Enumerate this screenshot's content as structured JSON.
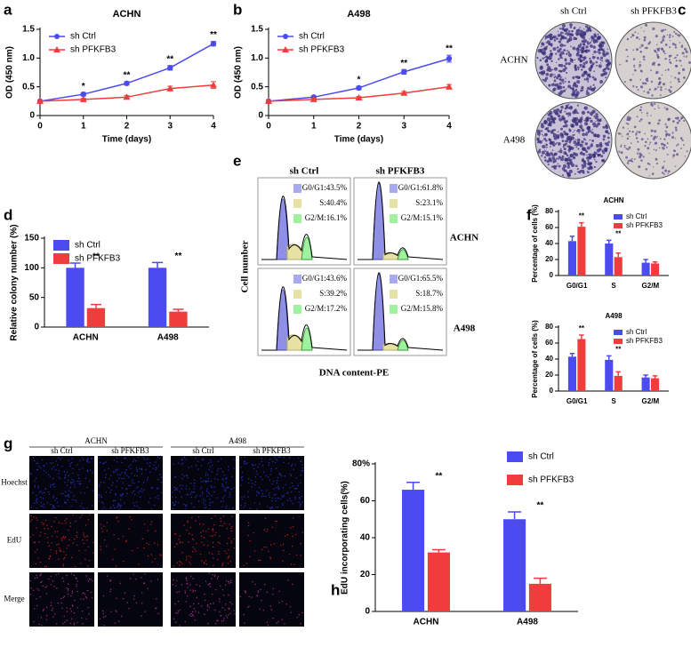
{
  "chart_data": [
    {
      "type": "line",
      "panel_label": "a",
      "title": "ACHN",
      "xlabel": "Time (days)",
      "ylabel": "OD (450 nm)",
      "x": [
        0,
        1,
        2,
        3,
        4
      ],
      "xlim": [
        0,
        4
      ],
      "xticks": [
        0,
        1,
        2,
        3,
        4
      ],
      "ylim": [
        0,
        1.5
      ],
      "yticks": [
        0,
        0.5,
        {
          "value": 1,
          "label": "1.0"
        },
        1.5
      ],
      "legend": "upper left",
      "series": [
        {
          "name": "sh Ctrl",
          "color": "#4b4bf0",
          "marker": "circle",
          "values": [
            0.25,
            0.37,
            0.56,
            0.83,
            1.25
          ],
          "errors": [
            0.01,
            0.03,
            0.03,
            0.04,
            0.04
          ]
        },
        {
          "name": "sh PFKFB3",
          "color": "#f03c3c",
          "marker": "triangle",
          "values": [
            0.25,
            0.28,
            0.32,
            0.47,
            0.53
          ],
          "errors": [
            0.01,
            0.02,
            0.03,
            0.04,
            0.06
          ],
          "annotations": [
            null,
            "*",
            "**",
            "**",
            "**"
          ]
        }
      ]
    },
    {
      "type": "line",
      "panel_label": "b",
      "title": "A498",
      "xlabel": "Time (days)",
      "ylabel": "OD (450 nm)",
      "x": [
        0,
        1,
        2,
        3,
        4
      ],
      "xlim": [
        0,
        4
      ],
      "xticks": [
        0,
        1,
        2,
        3,
        4
      ],
      "ylim": [
        0,
        1.5
      ],
      "yticks": [
        0,
        0.5,
        {
          "value": 1,
          "label": "1.0"
        },
        1.5
      ],
      "legend": "upper left",
      "series": [
        {
          "name": "sh Ctrl",
          "color": "#4b4bf0",
          "marker": "circle",
          "values": [
            0.25,
            0.32,
            0.48,
            0.76,
            0.99
          ],
          "errors": [
            0.01,
            0.02,
            0.03,
            0.04,
            0.06
          ]
        },
        {
          "name": "sh PFKFB3",
          "color": "#f03c3c",
          "marker": "triangle",
          "values": [
            0.25,
            0.28,
            0.31,
            0.39,
            0.5
          ],
          "errors": [
            0.01,
            0.02,
            0.02,
            0.03,
            0.04
          ],
          "annotations": [
            null,
            null,
            "*",
            "**",
            "**"
          ]
        }
      ]
    },
    {
      "type": "bar",
      "panel_label": "d",
      "ylabel": "Relative colony number (%)",
      "categories": [
        "ACHN",
        "A498"
      ],
      "ylim": [
        0,
        150
      ],
      "yticks": [
        0,
        50,
        100,
        150
      ],
      "legend": "upper left",
      "series": [
        {
          "name": "sh Ctrl",
          "color": "#4b4bf0",
          "values": [
            100,
            100
          ],
          "errors": [
            8,
            9
          ]
        },
        {
          "name": "sh PFKFB3",
          "color": "#f03c3c",
          "values": [
            32,
            26
          ],
          "errors": [
            6,
            4
          ],
          "annotations": [
            "**",
            "**"
          ]
        }
      ]
    },
    {
      "type": "bar",
      "panel_label": "f",
      "title": "ACHN",
      "ylabel": "Percentage of cells (%)",
      "categories": [
        "G0/G1",
        "S",
        "G2/M"
      ],
      "ylim": [
        0,
        80
      ],
      "yticks": [
        0,
        20,
        40,
        60,
        80
      ],
      "legend": "upper right",
      "series": [
        {
          "name": "sh Ctrl",
          "color": "#4b4bf0",
          "values": [
            43,
            40,
            16
          ],
          "errors": [
            6,
            4,
            4
          ]
        },
        {
          "name": "sh PFKFB3",
          "color": "#f03c3c",
          "values": [
            61,
            23,
            15
          ],
          "errors": [
            5,
            5,
            2
          ],
          "annotations": [
            "**",
            "**",
            null
          ]
        }
      ]
    },
    {
      "type": "bar",
      "title": "A498",
      "ylabel": "Percentage of cells (%)",
      "categories": [
        "G0/G1",
        "S",
        "G2/M"
      ],
      "ylim": [
        0,
        80
      ],
      "yticks": [
        0,
        20,
        40,
        60,
        80
      ],
      "legend": "upper right",
      "series": [
        {
          "name": "sh Ctrl",
          "color": "#4b4bf0",
          "values": [
            43,
            39,
            17
          ],
          "errors": [
            4,
            5,
            3
          ]
        },
        {
          "name": "sh PFKFB3",
          "color": "#f03c3c",
          "values": [
            65,
            19,
            16
          ],
          "errors": [
            5,
            5,
            3
          ],
          "annotations": [
            "**",
            "**",
            null
          ]
        }
      ]
    },
    {
      "type": "bar",
      "panel_label": "h",
      "ylabel": "EdU incorporating cells(%)",
      "categories": [
        "ACHN",
        "A498"
      ],
      "ylim": [
        0,
        80
      ],
      "yticks": [
        0,
        20,
        40,
        60,
        {
          "value": 80,
          "label": "80%"
        }
      ],
      "legend": "right",
      "series": [
        {
          "name": "sh Ctrl",
          "color": "#4b4bf0",
          "values": [
            66,
            50
          ],
          "errors": [
            4,
            4
          ]
        },
        {
          "name": "sh PFKFB3",
          "color": "#f03c3c",
          "values": [
            32,
            15
          ],
          "errors": [
            1.5,
            3
          ],
          "annotations": [
            "**",
            "**"
          ]
        }
      ]
    }
  ],
  "panel_c": {
    "label": "c",
    "columns": [
      "sh Ctrl",
      "sh PFKFB3"
    ],
    "rows": [
      "ACHN",
      "A498"
    ]
  },
  "panel_e": {
    "label": "e",
    "columns": [
      "sh Ctrl",
      "sh PFKFB3"
    ],
    "rows": [
      "ACHN",
      "A498"
    ],
    "xlabel": "DNA content-PE",
    "ylabel": "Cell number",
    "legends": [
      [
        [
          "G0/G1:43.5%",
          "S:40.4%",
          "G2/M:16.1%"
        ],
        [
          "G0/G1:61.8%",
          "S:23.1%",
          "G2/M:15.1%"
        ]
      ],
      [
        [
          "G0/G1:43.6%",
          "S:39.2%",
          "G2/M:17.2%"
        ],
        [
          "G0/G1:65.5%",
          "S:18.7%",
          "G2/M:15.8%"
        ]
      ]
    ]
  },
  "panel_g": {
    "label": "g",
    "groups": [
      "ACHN",
      "A498"
    ],
    "columns": [
      "sh Ctrl",
      "sh PFKFB3",
      "sh Ctrl",
      "sh PFKFB3"
    ],
    "rows": [
      "Hoechst",
      "EdU",
      "Merge"
    ]
  }
}
